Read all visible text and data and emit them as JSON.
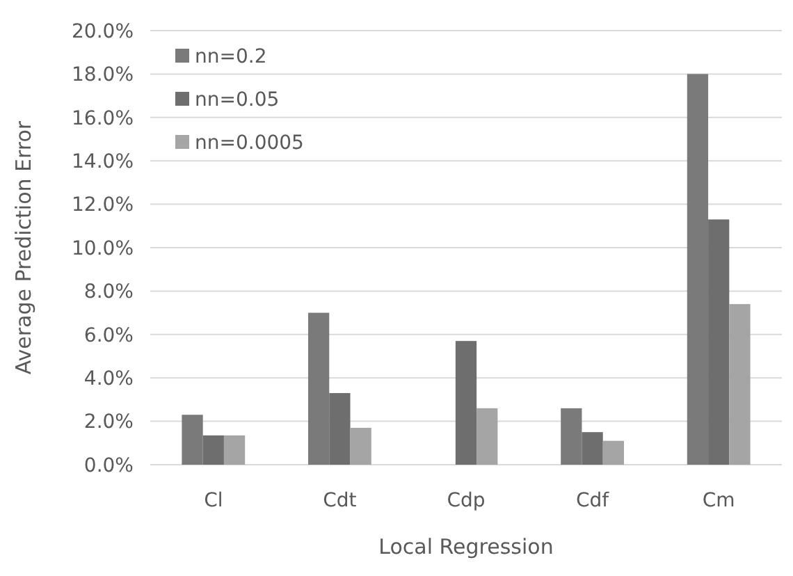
{
  "chart_data": {
    "type": "bar",
    "xlabel": "Local Regression",
    "ylabel": "Average Prediction Error",
    "categories": [
      "Cl",
      "Cdt",
      "Cdp",
      "Cdf",
      "Cm"
    ],
    "series": [
      {
        "name": "nn=0.2",
        "color": "#7a7a7a",
        "values": [
          2.3,
          7.0,
          null,
          2.6,
          18.0
        ]
      },
      {
        "name": "nn=0.05",
        "color": "#6e6e6e",
        "values": [
          1.35,
          3.3,
          5.7,
          1.5,
          11.3
        ]
      },
      {
        "name": "nn=0.0005",
        "color": "#a5a5a5",
        "values": [
          1.35,
          1.7,
          2.6,
          1.1,
          7.4
        ]
      }
    ],
    "ylim": [
      0,
      20
    ],
    "yticks": [
      {
        "value": 0,
        "label": "0.0%"
      },
      {
        "value": 2,
        "label": "2.0%"
      },
      {
        "value": 4,
        "label": "4.0%"
      },
      {
        "value": 6,
        "label": "6.0%"
      },
      {
        "value": 8,
        "label": "8.0%"
      },
      {
        "value": 10,
        "label": "10.0%"
      },
      {
        "value": 12,
        "label": "12.0%"
      },
      {
        "value": 14,
        "label": "14.0%"
      },
      {
        "value": 16,
        "label": "16.0%"
      },
      {
        "value": 18,
        "label": "18.0%"
      },
      {
        "value": 20,
        "label": "20.0%"
      }
    ],
    "grid": "y",
    "legend": "top left"
  }
}
